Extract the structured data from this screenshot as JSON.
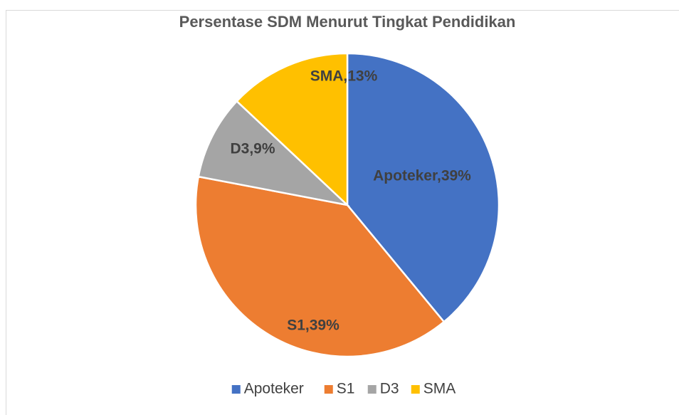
{
  "chart_data": {
    "type": "pie",
    "title": "Persentase SDM Menurut Tingkat Pendidikan",
    "categories": [
      "Apoteker",
      "S1",
      "D3",
      "SMA"
    ],
    "values": [
      39,
      39,
      9,
      13
    ],
    "value_labels": [
      "Apoteker,39%",
      "S1,39%",
      "D3,9%",
      "SMA,13%"
    ],
    "colors": [
      "#4472c4",
      "#ed7d31",
      "#a5a5a5",
      "#ffc000"
    ],
    "legend": "bottom"
  }
}
